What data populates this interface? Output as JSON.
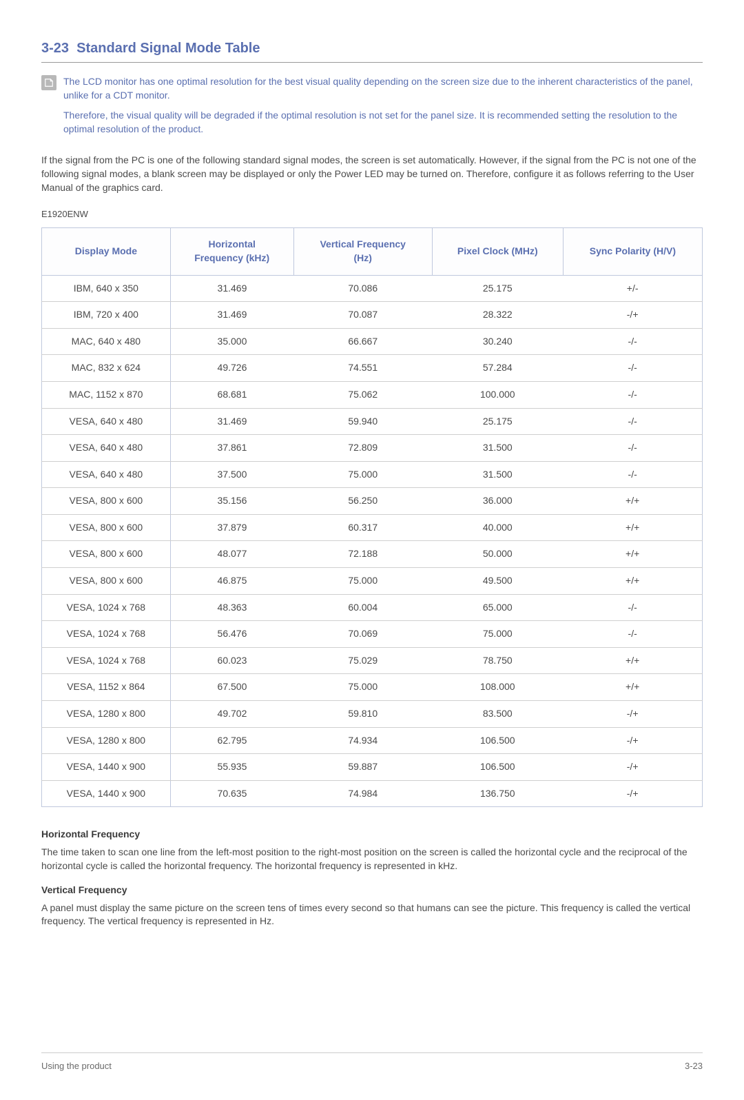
{
  "section": {
    "number": "3-23",
    "title": "Standard Signal Mode Table"
  },
  "note": {
    "p1": "The LCD monitor has one optimal resolution for the best visual quality depending on the screen size due to the inherent characteristics of the panel, unlike for a CDT monitor.",
    "p2": "Therefore, the visual quality will be degraded if the optimal resolution is not set for the panel size. It is recommended setting the resolution to the optimal resolution of the product."
  },
  "intro": "If the signal from the PC is one of the following standard signal modes, the screen is set automatically. However, if the signal from the PC is not one of the following signal modes, a blank screen may be displayed or only the Power LED may be turned on. Therefore, configure it as follows referring to the User Manual of the graphics card.",
  "model": "E1920ENW",
  "table": {
    "columns": [
      "Display Mode",
      "Horizontal Frequency (kHz)",
      "Vertical Frequency (Hz)",
      "Pixel Clock (MHz)",
      "Sync Polarity (H/V)"
    ],
    "rows": [
      [
        "IBM, 640 x 350",
        "31.469",
        "70.086",
        "25.175",
        "+/-"
      ],
      [
        "IBM, 720 x 400",
        "31.469",
        "70.087",
        "28.322",
        "-/+"
      ],
      [
        "MAC, 640 x 480",
        "35.000",
        "66.667",
        "30.240",
        "-/-"
      ],
      [
        "MAC, 832 x 624",
        "49.726",
        "74.551",
        "57.284",
        "-/-"
      ],
      [
        "MAC, 1152 x 870",
        "68.681",
        "75.062",
        "100.000",
        "-/-"
      ],
      [
        "VESA, 640 x 480",
        "31.469",
        "59.940",
        "25.175",
        "-/-"
      ],
      [
        "VESA, 640 x 480",
        "37.861",
        "72.809",
        "31.500",
        "-/-"
      ],
      [
        "VESA, 640 x 480",
        "37.500",
        "75.000",
        "31.500",
        "-/-"
      ],
      [
        "VESA, 800 x 600",
        "35.156",
        "56.250",
        "36.000",
        "+/+"
      ],
      [
        "VESA, 800 x 600",
        "37.879",
        "60.317",
        "40.000",
        "+/+"
      ],
      [
        "VESA, 800 x 600",
        "48.077",
        "72.188",
        "50.000",
        "+/+"
      ],
      [
        "VESA, 800 x 600",
        "46.875",
        "75.000",
        "49.500",
        "+/+"
      ],
      [
        "VESA, 1024 x 768",
        "48.363",
        "60.004",
        "65.000",
        "-/-"
      ],
      [
        "VESA, 1024 x 768",
        "56.476",
        "70.069",
        "75.000",
        "-/-"
      ],
      [
        "VESA, 1024 x 768",
        "60.023",
        "75.029",
        "78.750",
        "+/+"
      ],
      [
        "VESA, 1152 x 864",
        "67.500",
        "75.000",
        "108.000",
        "+/+"
      ],
      [
        "VESA, 1280 x 800",
        "49.702",
        "59.810",
        "83.500",
        "-/+"
      ],
      [
        "VESA, 1280 x 800",
        "62.795",
        "74.934",
        "106.500",
        "-/+"
      ],
      [
        "VESA, 1440 x 900",
        "55.935",
        "59.887",
        "106.500",
        "-/+"
      ],
      [
        "VESA, 1440 x 900",
        "70.635",
        "74.984",
        "136.750",
        "-/+"
      ]
    ]
  },
  "defs": {
    "hf_title": "Horizontal Frequency",
    "hf_body": "The time taken to scan one line from the left-most position to the right-most position on the screen is called the horizontal cycle and the reciprocal of the horizontal cycle is called the horizontal frequency. The horizontal frequency is represented in kHz.",
    "vf_title": "Vertical Frequency",
    "vf_body": "A panel must display the same picture on the screen tens of times every second so that humans can see the picture. This frequency is called the vertical frequency. The vertical frequency is represented in Hz."
  },
  "footer": {
    "left": "Using the product",
    "right": "3-23"
  }
}
